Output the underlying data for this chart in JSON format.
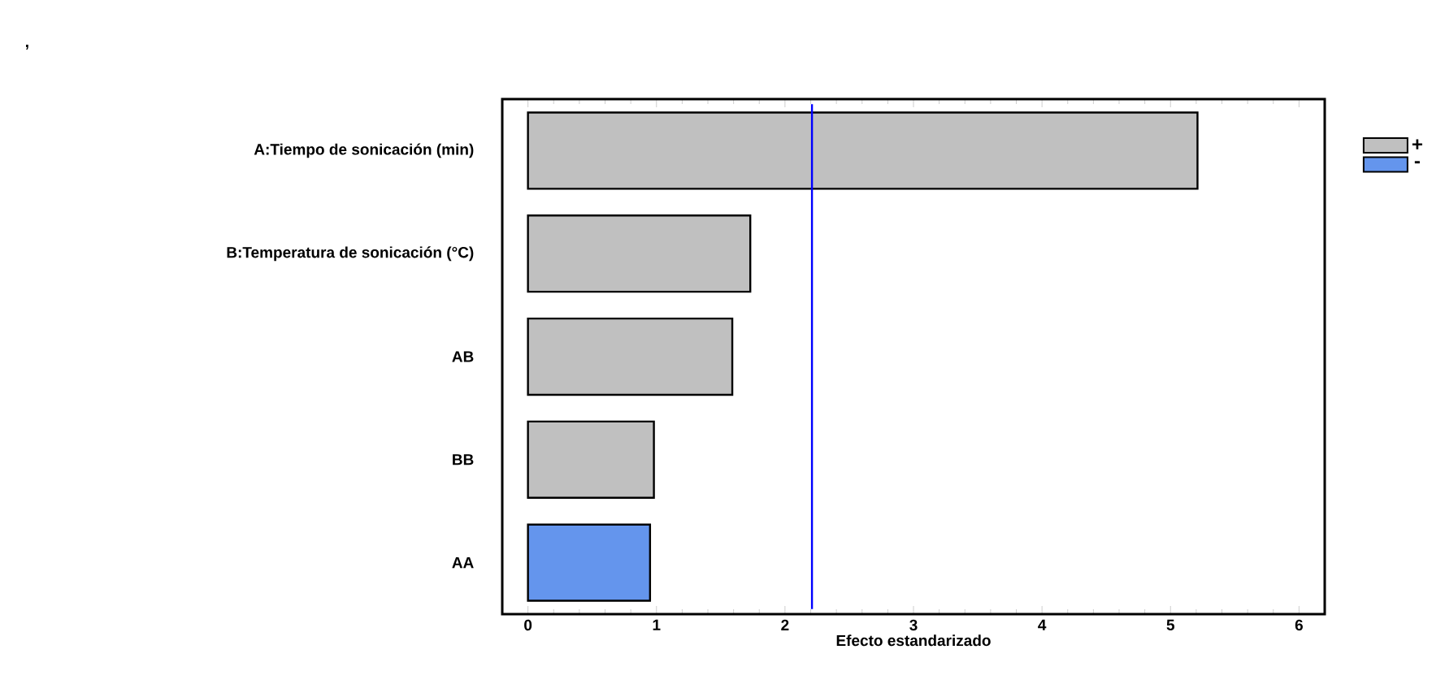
{
  "chart_data": {
    "type": "bar",
    "orientation": "horizontal",
    "annotations": [
      ","
    ],
    "xlabel": "Efecto estandarizado",
    "categories": [
      "A:Tiempo de sonicación (min)",
      "B:Temperatura de sonicación (°C)",
      "AB",
      "BB",
      "AA"
    ],
    "series": [
      {
        "name": "+",
        "color": "#c0c0c0",
        "values": [
          5.21,
          1.73,
          1.59,
          0.98,
          null
        ]
      },
      {
        "name": "-",
        "color": "#6495ed",
        "values": [
          null,
          null,
          null,
          null,
          0.95
        ]
      }
    ],
    "xlim": [
      -0.2,
      6.2
    ],
    "xticks": [
      0,
      1,
      2,
      3,
      4,
      5,
      6
    ],
    "ref_lines": [
      {
        "axis": "x",
        "value": 2.21,
        "color": "#0000ff"
      }
    ],
    "legend": "top right",
    "grid": false
  }
}
